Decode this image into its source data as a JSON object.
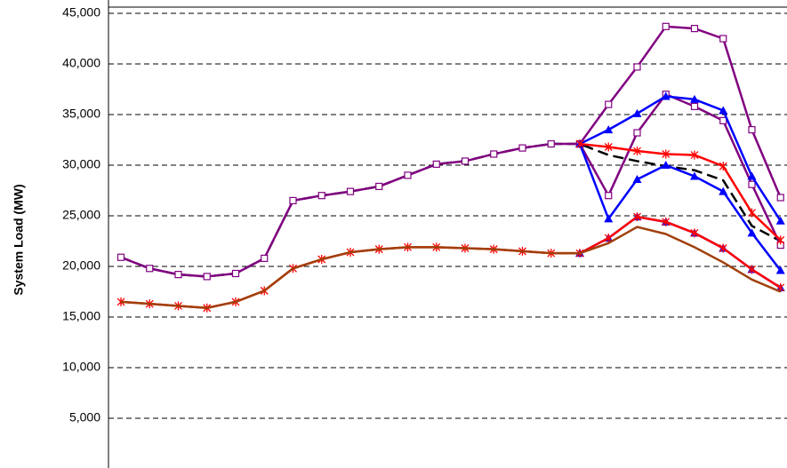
{
  "chart_data": {
    "type": "line",
    "y_label": "System Load (MW)",
    "categories": [
      null,
      null,
      null,
      null,
      null,
      null,
      null,
      null,
      null,
      null,
      null,
      null,
      null,
      null,
      null,
      null,
      null,
      null,
      null,
      null,
      null,
      null,
      null,
      null
    ],
    "ylim": [
      0,
      45000
    ],
    "yticks": [
      {
        "value": 5000,
        "label": "5,000"
      },
      {
        "value": 10000,
        "label": "10,000"
      },
      {
        "value": 15000,
        "label": "15,000"
      },
      {
        "value": 20000,
        "label": "20,000"
      },
      {
        "value": 25000,
        "label": "25,000"
      },
      {
        "value": 30000,
        "label": "30,000"
      },
      {
        "value": 35000,
        "label": "35,000"
      },
      {
        "value": 40000,
        "label": "40,000"
      },
      {
        "value": 45000,
        "label": "45,000"
      }
    ],
    "grid": true,
    "series": [
      {
        "color": "#000000",
        "dashed": true,
        "marker": "none",
        "values": [
          20900,
          19800,
          19200,
          19000,
          19300,
          20800,
          26500,
          27000,
          27400,
          27900,
          29000,
          30100,
          30400,
          31100,
          31700,
          32100,
          32100,
          31000,
          30400,
          29900,
          29500,
          28500,
          24000,
          22500
        ]
      },
      {
        "color": "#800080",
        "dashed": false,
        "marker": "square",
        "values": [
          20900,
          19800,
          19200,
          19000,
          19300,
          20800,
          26500,
          27000,
          27400,
          27900,
          29000,
          30100,
          30400,
          31100,
          31700,
          32100,
          32100,
          36000,
          39700,
          43700,
          43500,
          42500,
          33500,
          26800
        ]
      },
      {
        "color": "#800080",
        "dashed": false,
        "marker": "square",
        "values": [
          null,
          null,
          null,
          null,
          null,
          null,
          null,
          null,
          null,
          null,
          null,
          null,
          null,
          null,
          null,
          null,
          32100,
          27000,
          33200,
          37000,
          35800,
          34400,
          28100,
          22100
        ]
      },
      {
        "color": "#0000ff",
        "dashed": false,
        "marker": "triangle",
        "values": [
          null,
          null,
          null,
          null,
          null,
          null,
          null,
          null,
          null,
          null,
          null,
          null,
          null,
          null,
          null,
          null,
          32100,
          33500,
          35100,
          36800,
          36500,
          35400,
          28900,
          24500
        ]
      },
      {
        "color": "#0000ff",
        "dashed": false,
        "marker": "triangle",
        "values": [
          null,
          null,
          null,
          null,
          null,
          null,
          null,
          null,
          null,
          null,
          null,
          null,
          null,
          null,
          null,
          null,
          32100,
          24700,
          28600,
          30000,
          28900,
          27400,
          23300,
          19600
        ]
      },
      {
        "color": "#ff0000",
        "dashed": false,
        "marker": "x",
        "values": [
          null,
          null,
          null,
          null,
          null,
          null,
          null,
          null,
          null,
          null,
          null,
          null,
          null,
          null,
          null,
          null,
          32100,
          31800,
          31400,
          31100,
          31000,
          29900,
          25300,
          22600
        ]
      },
      {
        "color": "#0000ff",
        "dashed": false,
        "marker": "triangle",
        "values": [
          null,
          null,
          null,
          null,
          null,
          null,
          null,
          null,
          null,
          null,
          null,
          null,
          null,
          null,
          null,
          null,
          21300,
          22800,
          24900,
          24400,
          23300,
          21800,
          19700,
          17900
        ]
      },
      {
        "color": "#ff0000",
        "dashed": false,
        "marker": "x",
        "values": [
          16500,
          16300,
          16100,
          15900,
          16500,
          17600,
          19800,
          20700,
          21400,
          21700,
          21900,
          21900,
          21800,
          21700,
          21500,
          21300,
          21300,
          22800,
          24900,
          24400,
          23300,
          21800,
          19700,
          17900
        ]
      },
      {
        "color": "#a0400a",
        "dashed": false,
        "marker": "none",
        "values": [
          16500,
          16300,
          16100,
          15900,
          16500,
          17600,
          19800,
          20700,
          21400,
          21700,
          21900,
          21900,
          21800,
          21700,
          21500,
          21300,
          21300,
          22300,
          23900,
          23200,
          21900,
          20400,
          18700,
          17500
        ]
      }
    ]
  }
}
